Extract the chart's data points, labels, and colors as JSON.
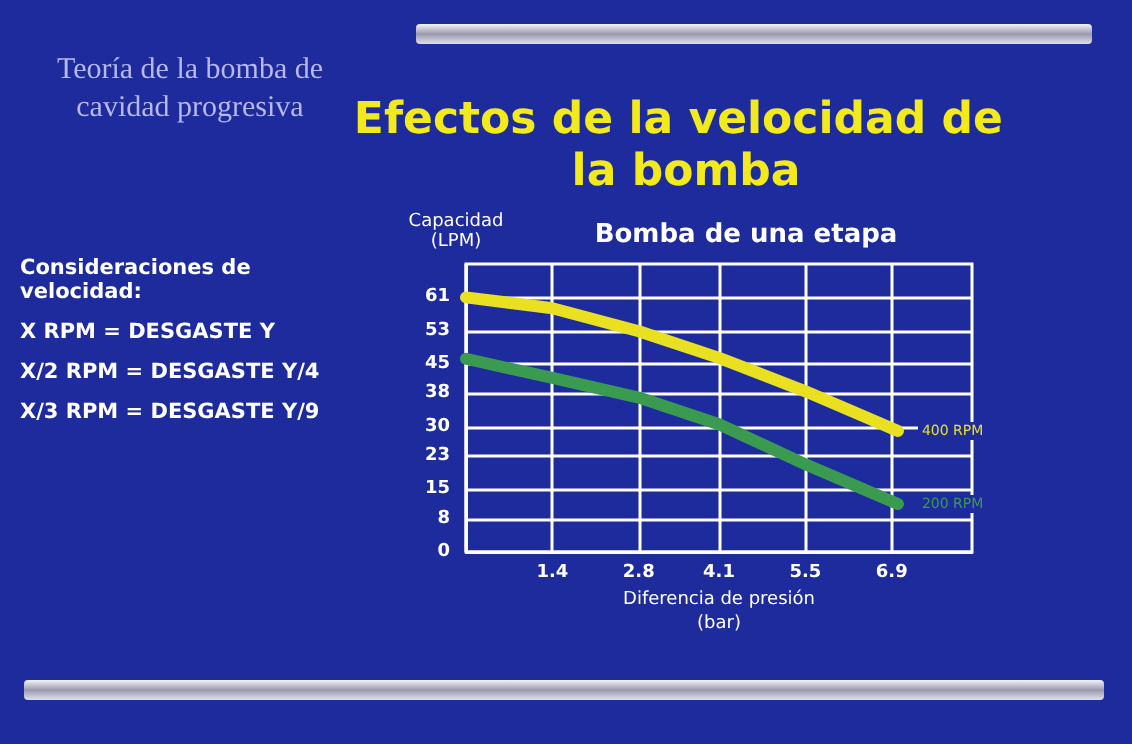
{
  "chart_data": {
    "type": "line",
    "title": "Efectos de la velocidad de la bomba",
    "subtitle": "Bomba de una etapa",
    "xlabel": "Diferencia de presión\n(bar)",
    "ylabel": "Capacidad\n(LPM)",
    "annotations": [
      "Teoría de la bomba de cavidad progresiva",
      "Consideraciones de velocidad:",
      "X RPM = DESGASTE  Y",
      "X/2 RPM = DESGASTE Y/4",
      "X/3 RPM = DESGASTE Y/9"
    ],
    "x": [
      0,
      1.4,
      2.8,
      4.1,
      5.5,
      7.0
    ],
    "series": [
      {
        "name": "400 RPM",
        "color": "#e8e020",
        "values": [
          61,
          58.4,
          52.9,
          46.5,
          38.5,
          29
        ]
      },
      {
        "name": "200 RPM",
        "color": "#3a9a50",
        "values": [
          46.3,
          41.7,
          37,
          30.6,
          21,
          11.5
        ]
      }
    ],
    "xlim": [
      0,
      8.2
    ],
    "xticks": [
      {
        "value": 0,
        "label": null
      },
      1.4,
      2.8,
      4.1,
      5.5,
      6.9
    ],
    "ylim": [
      0,
      69
    ],
    "yticks": [
      0,
      8,
      15,
      23,
      30,
      38,
      45,
      53,
      61
    ],
    "grid": true,
    "legend": false,
    "marker": "none",
    "line_style": "solid"
  }
}
